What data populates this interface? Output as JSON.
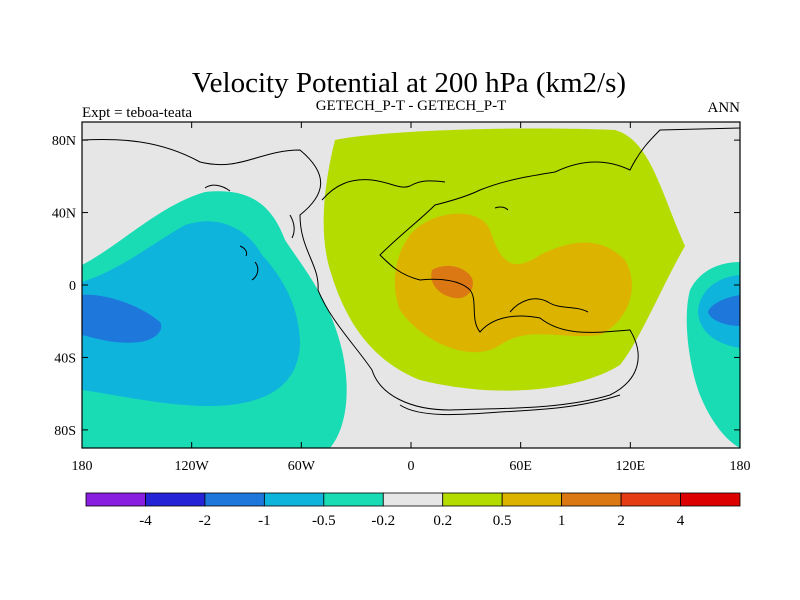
{
  "chart_data": {
    "type": "heatmap",
    "title": "Velocity Potential at 200 hPa (km2/s)",
    "left_label": "Expt = teboa-teata",
    "center_label": "GETECH_P-T - GETECH_P-T",
    "right_label": "ANN",
    "x_ticks": [
      "180",
      "120W",
      "60W",
      "0",
      "60E",
      "120E",
      "180"
    ],
    "x_tick_values": [
      -180,
      -120,
      -60,
      0,
      60,
      120,
      180
    ],
    "y_ticks": [
      "80N",
      "40N",
      "0",
      "40S",
      "80S"
    ],
    "y_tick_values": [
      80,
      40,
      0,
      -40,
      -80
    ],
    "xlim": [
      -180,
      180
    ],
    "ylim": [
      -90,
      90
    ],
    "colorbar": {
      "levels": [
        "-4",
        "-2",
        "-1",
        "-0.5",
        "-0.2",
        "0.2",
        "0.5",
        "1",
        "2",
        "4"
      ],
      "colors": [
        "#8a1ee0",
        "#2424d6",
        "#1e78dc",
        "#0fb4dc",
        "#19dcb4",
        "#e6e6e6",
        "#b4dc00",
        "#dcb400",
        "#dc7814",
        "#e63c14",
        "#dc0000"
      ]
    },
    "regions": [
      {
        "name": "positive-high-center",
        "value_range": "1 to 2",
        "lon_center": 22,
        "lat_center": 2,
        "color_index": 8
      },
      {
        "name": "positive-mid-region",
        "value_range": "0.5 to 1",
        "lon_center": 40,
        "lat_center": 5,
        "color_index": 7
      },
      {
        "name": "positive-broad-region",
        "value_range": "0.2 to 0.5",
        "lon_center": 40,
        "lat_center": 10,
        "color_index": 6
      },
      {
        "name": "negative-broad-pacific",
        "value_range": "-0.5 to -0.2",
        "lon_center": -130,
        "lat_center": -15,
        "color_index": 4
      },
      {
        "name": "negative-mid-pacific",
        "value_range": "-1 to -0.5",
        "lon_center": -130,
        "lat_center": -10,
        "color_index": 3
      },
      {
        "name": "negative-low-center",
        "value_range": "-2 to -1",
        "lon_center": -165,
        "lat_center": -20,
        "color_index": 2
      },
      {
        "name": "negative-broad-east",
        "value_range": "-0.5 to -0.2",
        "lon_center": 170,
        "lat_center": -20,
        "color_index": 4
      },
      {
        "name": "negative-mid-east",
        "value_range": "-1 to -0.5",
        "lon_center": 172,
        "lat_center": -18,
        "color_index": 3
      },
      {
        "name": "negative-low-east",
        "value_range": "-2 to -1",
        "lon_center": 175,
        "lat_center": -17,
        "color_index": 2
      }
    ]
  }
}
